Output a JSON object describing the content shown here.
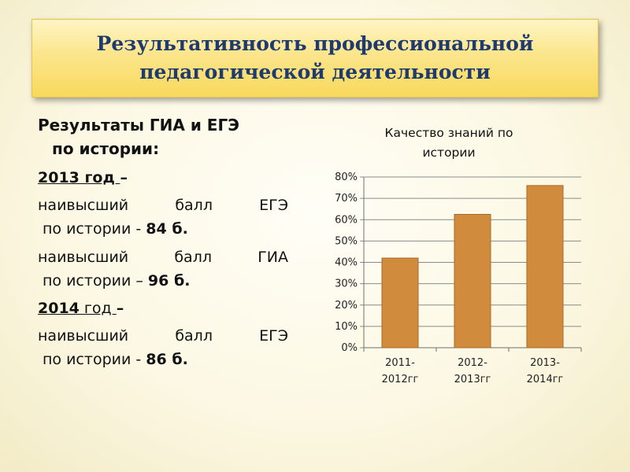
{
  "title": {
    "line1": "Результативность профессиональной",
    "line2": "педагогической деятельности"
  },
  "left": {
    "heading_line1": "Результаты ГИА и ЕГЭ",
    "heading_line2": "по истории:",
    "block2013": {
      "year": "2013 год ",
      "dash": "–",
      "items": [
        {
          "w1": "наивысший",
          "w2": "балл",
          "w3": "ЕГЭ",
          "line2": "по истории - ",
          "value": "84 б."
        },
        {
          "w1": "наивысший",
          "w2": "балл",
          "w3": "ГИА",
          "line2": "по истории – ",
          "value": "96 б."
        }
      ]
    },
    "block2014": {
      "year_num": "2014",
      "year_word": " год ",
      "dash": "–",
      "items": [
        {
          "w1": "наивысший",
          "w2": "балл",
          "w3": "ЕГЭ",
          "line2": "по истории  - ",
          "value": "86 б."
        }
      ]
    }
  },
  "chart_data": {
    "type": "bar",
    "title_line1": "Качество знаний по",
    "title_line2": "истории",
    "categories": [
      {
        "line1": "2011-",
        "line2": "2012гг"
      },
      {
        "line1": "2012-",
        "line2": "2013гг"
      },
      {
        "line1": "2013-",
        "line2": "2014гг"
      }
    ],
    "values": [
      42,
      62.5,
      76
    ],
    "ylim": [
      0,
      80
    ],
    "yticks": [
      0,
      10,
      20,
      30,
      40,
      50,
      60,
      70,
      80
    ],
    "tick_suffix": "%",
    "grid": true,
    "bar_color": "#d08c3c",
    "bar_edge": "#a8672a"
  }
}
